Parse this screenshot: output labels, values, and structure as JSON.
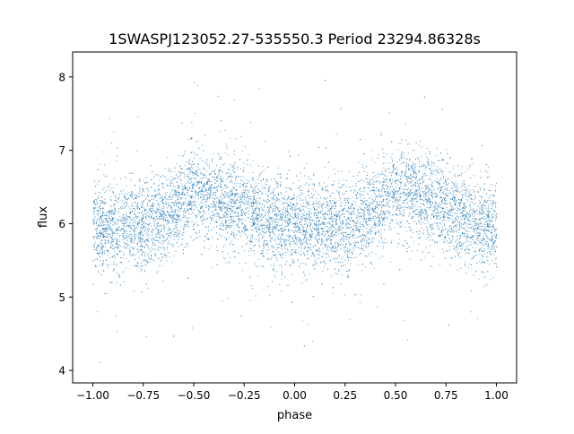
{
  "chart_data": {
    "type": "scatter",
    "title": "1SWASPJ123052.27-535550.3 Period 23294.86328s",
    "xlabel": "phase",
    "ylabel": "flux",
    "xlim": [
      -1.1,
      1.1
    ],
    "ylim": [
      3.83,
      8.34
    ],
    "xticks": [
      -1.0,
      -0.75,
      -0.5,
      -0.25,
      0.0,
      0.25,
      0.5,
      0.75,
      1.0
    ],
    "xtick_labels": [
      "−1.00",
      "−0.75",
      "−0.50",
      "−0.25",
      "0.00",
      "0.25",
      "0.50",
      "0.75",
      "1.00"
    ],
    "yticks": [
      4,
      5,
      6,
      7,
      8
    ],
    "ytick_labels": [
      "4",
      "5",
      "6",
      "7",
      "8"
    ],
    "grid": false,
    "marker_color": "#1f77b4",
    "binned_mean_flux": {
      "phase": [
        -1.0,
        -0.875,
        -0.75,
        -0.625,
        -0.5,
        -0.375,
        -0.25,
        -0.125,
        0.0,
        0.125,
        0.25,
        0.375,
        0.5,
        0.625,
        0.75,
        0.875,
        1.0
      ],
      "flux": [
        5.95,
        5.97,
        5.98,
        6.15,
        6.42,
        6.35,
        6.2,
        6.05,
        5.95,
        5.95,
        5.98,
        6.15,
        6.42,
        6.35,
        6.2,
        6.05,
        5.95
      ]
    },
    "scatter_sd": 0.3
  }
}
